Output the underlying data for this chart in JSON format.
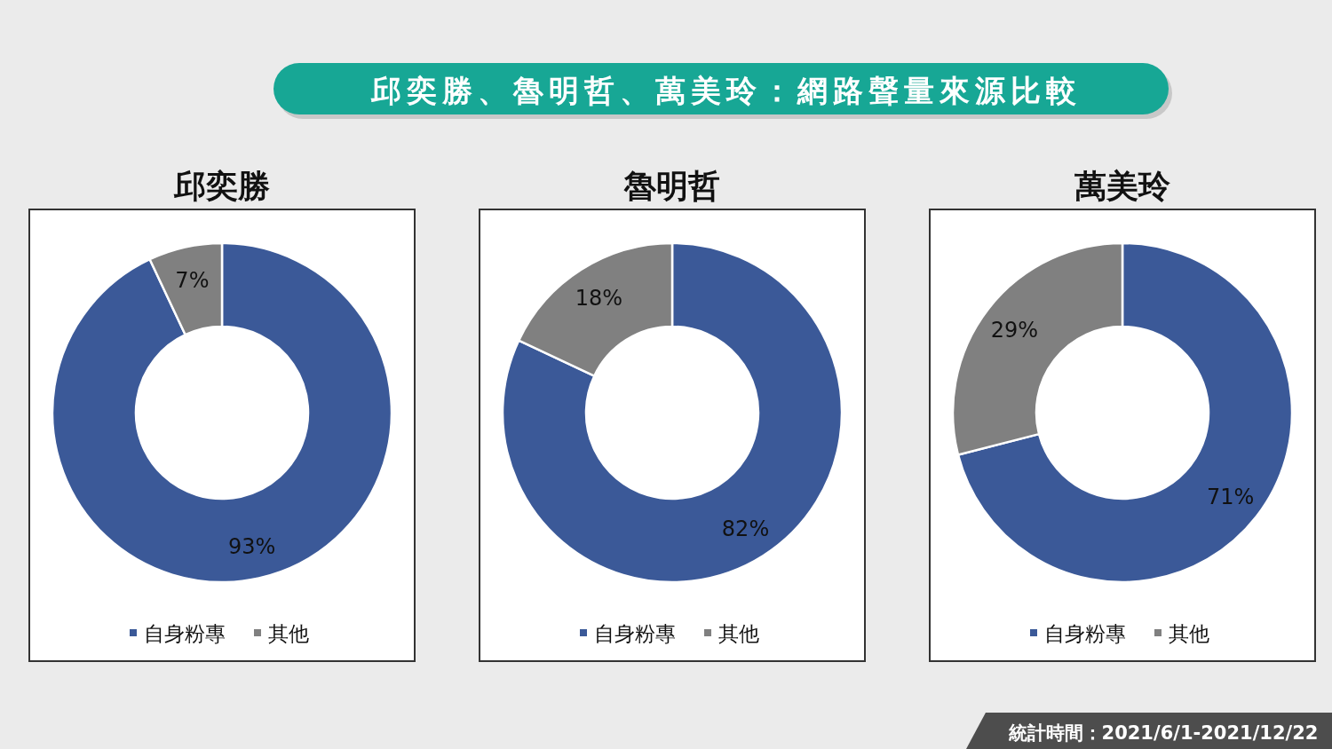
{
  "chart_data": [
    {
      "type": "other",
      "title": "邱奕勝、魯明哲、萬美玲：網路聲量來源比較",
      "annotations": [
        "統計時間：2021/6/1-2021/12/22"
      ]
    },
    {
      "type": "donut",
      "title": "邱奕勝",
      "categories": [
        "自身粉專",
        "其他"
      ],
      "values": [
        93,
        7
      ],
      "colors": [
        "#3b5998",
        "#808080"
      ],
      "data_labels": true,
      "value_labels": [
        "93%",
        "7%"
      ],
      "legend": "bottom"
    },
    {
      "type": "donut",
      "title": "魯明哲",
      "categories": [
        "自身粉專",
        "其他"
      ],
      "values": [
        82,
        18
      ],
      "colors": [
        "#3b5998",
        "#808080"
      ],
      "data_labels": true,
      "value_labels": [
        "82%",
        "18%"
      ],
      "legend": "bottom"
    },
    {
      "type": "donut",
      "title": "萬美玲",
      "categories": [
        "自身粉專",
        "其他"
      ],
      "values": [
        71,
        29
      ],
      "colors": [
        "#3b5998",
        "#808080"
      ],
      "data_labels": true,
      "value_labels": [
        "71%",
        "29%"
      ],
      "legend": "bottom"
    }
  ]
}
